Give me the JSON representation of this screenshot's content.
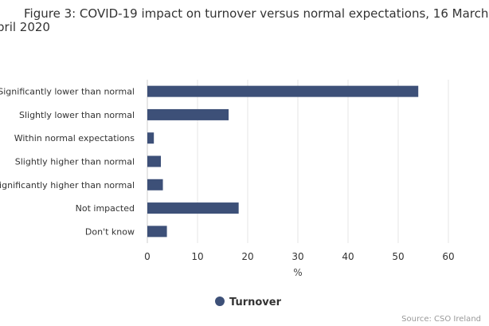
{
  "chart_data": {
    "type": "bar",
    "orientation": "horizontal",
    "title_lines": [
      "Figure 3: COVID-19 impact on turnover versus normal expectations, 16 March",
      "pril 2020"
    ],
    "categories": [
      "Significantly lower than normal",
      "Slightly lower than normal",
      "Within normal expectations",
      "Slightly higher than normal",
      "Significantly higher than normal",
      "Not impacted",
      "Don't know"
    ],
    "series": [
      {
        "name": "Turnover",
        "values": [
          54,
          16.2,
          1.3,
          2.7,
          3.1,
          18.2,
          3.9
        ]
      }
    ],
    "xlabel": "%",
    "xlim": [
      0,
      60
    ],
    "xticks": [
      0,
      10,
      20,
      30,
      40,
      50,
      60
    ],
    "grid": true,
    "legend_position": "bottom",
    "colors": {
      "bar": "#3d5078",
      "grid": "#e6e6e6"
    },
    "source": "Source: CSO Ireland"
  }
}
